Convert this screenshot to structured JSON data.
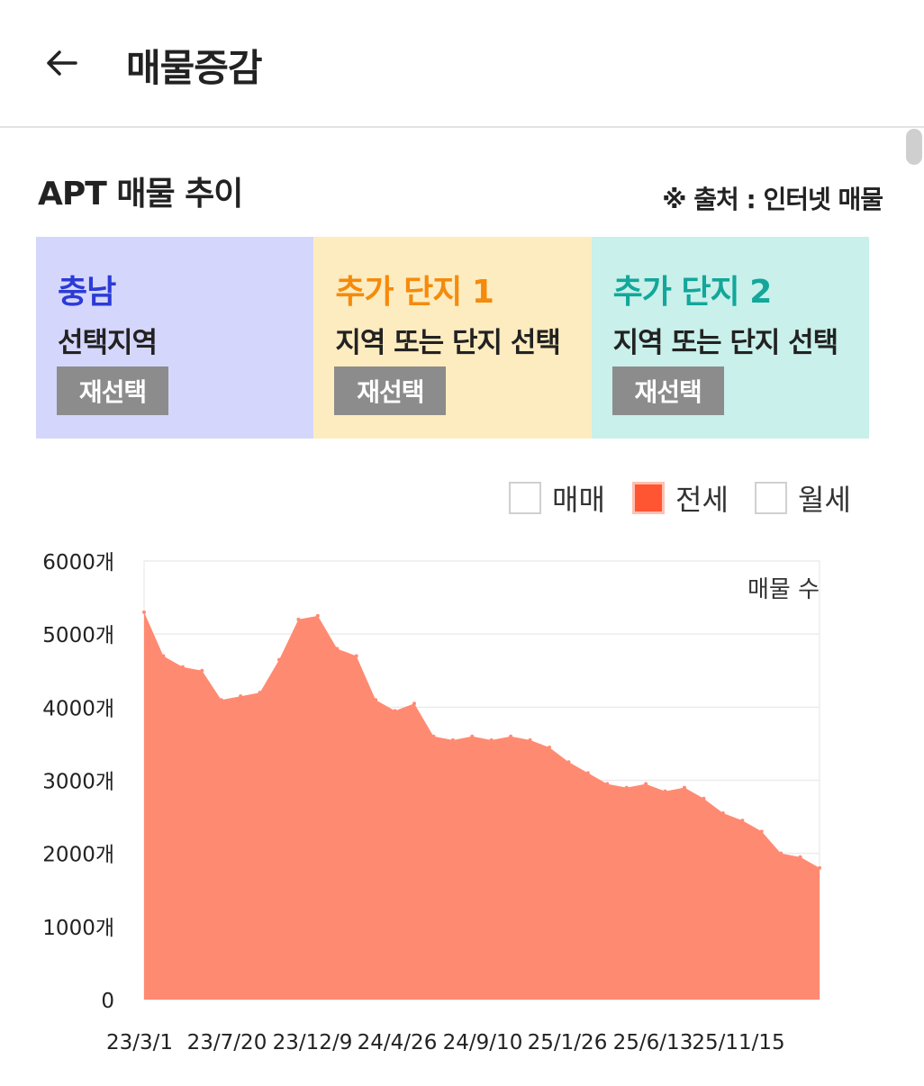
{
  "header": {
    "title": "매물증감",
    "back_icon": "arrow-left-icon"
  },
  "section": {
    "title": "APT 매물 추이",
    "source": "※ 출처 : 인터넷 매물"
  },
  "panels": [
    {
      "name": "충남",
      "name_color": "#2b3bd6",
      "bg": "#d5d6fb",
      "sub": "선택지역",
      "button": "재선택"
    },
    {
      "name": "추가 단지 1",
      "name_color": "#f58a0b",
      "bg": "#fdecc0",
      "sub": "지역 또는 단지 선택",
      "button": "재선택"
    },
    {
      "name": "추가 단지 2",
      "name_color": "#12a79a",
      "bg": "#c9f0ea",
      "sub": "지역 또는 단지 선택",
      "button": "재선택"
    }
  ],
  "legend": [
    {
      "label": "매매",
      "checked": false
    },
    {
      "label": "전세",
      "checked": true,
      "color": "#ff5533"
    },
    {
      "label": "월세",
      "checked": false
    }
  ],
  "chart_data": {
    "type": "area",
    "annotation": "매물 수",
    "fill_color": "#ff8a72",
    "ylim": [
      0,
      6000
    ],
    "yticks": [
      "0",
      "1000개",
      "2000개",
      "3000개",
      "4000개",
      "5000개",
      "6000개"
    ],
    "x_ticks": [
      "23/3/1",
      "23/7/20",
      "23/12/9",
      "24/4/26",
      "24/9/10",
      "25/1/26",
      "25/6/13",
      "25/11/15"
    ],
    "x": [
      "23/3/1",
      "23/4/10",
      "23/5/20",
      "23/6/15",
      "23/7/20",
      "23/8/20",
      "23/9/15",
      "23/10/15",
      "23/11/10",
      "23/12/9",
      "24/1/10",
      "24/2/10",
      "24/3/10",
      "24/4/26",
      "24/5/20",
      "24/6/20",
      "24/7/20",
      "24/8/20",
      "24/9/10",
      "24/10/10",
      "24/11/10",
      "24/12/10",
      "25/1/26",
      "25/2/20",
      "25/3/20",
      "25/4/20",
      "25/5/20",
      "25/6/13",
      "25/7/20",
      "25/8/20",
      "25/9/20",
      "25/10/20",
      "25/11/15",
      "25/12/20",
      "26/1/20",
      "26/2/20"
    ],
    "y": [
      5300,
      4700,
      4550,
      4500,
      4100,
      4150,
      4200,
      4650,
      5200,
      5250,
      4800,
      4700,
      4100,
      3950,
      4050,
      3600,
      3550,
      3600,
      3550,
      3600,
      3550,
      3450,
      3250,
      3100,
      2950,
      2900,
      2950,
      2850,
      2900,
      2750,
      2550,
      2450,
      2300,
      2000,
      1950,
      1800
    ]
  }
}
